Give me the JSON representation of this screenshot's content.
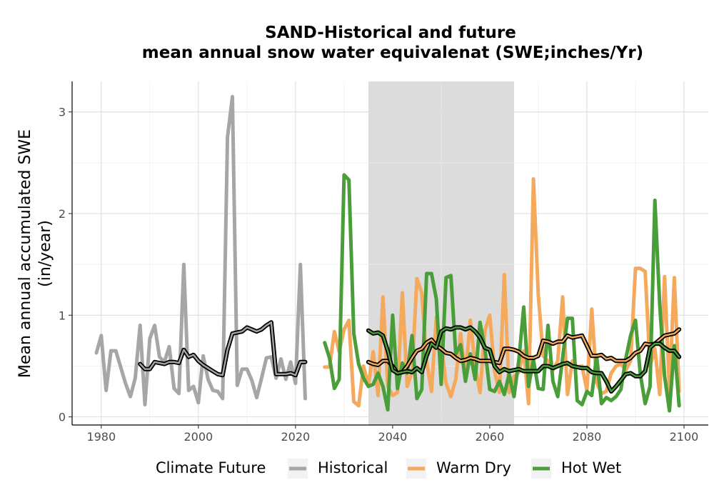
{
  "chart_data": {
    "type": "line",
    "title": "SAND-Historical and future",
    "subtitle": "mean annual snow water equivalenat (SWE;inches/Yr)",
    "xlabel": "",
    "ylabel_line1": "Mean annual accumulated SWE",
    "ylabel_line2": "(in/year)",
    "xlim": [
      1974,
      2105
    ],
    "ylim": [
      -0.08,
      3.3
    ],
    "x_ticks": [
      1980,
      2000,
      2020,
      2040,
      2060,
      2080,
      2100
    ],
    "y_ticks": [
      0,
      1,
      2,
      3
    ],
    "grid": true,
    "shaded_period": [
      2035,
      2065
    ],
    "legend": {
      "title": "Climate Future",
      "position": "bottom"
    },
    "colors": {
      "Historical": "#a6a6a6",
      "Warm Dry": "#f4a95c",
      "Hot Wet": "#4a9e3a",
      "shade": "#dcdcdc",
      "smooth": "#000000"
    },
    "series": [
      {
        "name": "Historical",
        "x": [
          1979,
          1980,
          1981,
          1982,
          1983,
          1984,
          1985,
          1986,
          1987,
          1988,
          1989,
          1990,
          1991,
          1992,
          1993,
          1994,
          1995,
          1996,
          1997,
          1998,
          1999,
          2000,
          2001,
          2002,
          2003,
          2004,
          2005,
          2006,
          2007,
          2008,
          2009,
          2010,
          2011,
          2012,
          2013,
          2014,
          2015,
          2016,
          2017,
          2018,
          2019,
          2020,
          2021,
          2022
        ],
        "y": [
          0.63,
          0.8,
          0.26,
          0.65,
          0.65,
          0.49,
          0.33,
          0.2,
          0.38,
          0.9,
          0.12,
          0.77,
          0.9,
          0.59,
          0.54,
          0.69,
          0.28,
          0.23,
          1.5,
          0.26,
          0.3,
          0.14,
          0.6,
          0.37,
          0.26,
          0.25,
          0.18,
          2.75,
          3.15,
          0.31,
          0.47,
          0.47,
          0.36,
          0.19,
          0.38,
          0.58,
          0.59,
          0.38,
          0.57,
          0.37,
          0.54,
          0.33,
          1.5,
          0.18
        ]
      },
      {
        "name": "Warm Dry",
        "x": [
          2026,
          2027,
          2028,
          2029,
          2030,
          2031,
          2032,
          2033,
          2034,
          2035,
          2036,
          2037,
          2038,
          2039,
          2040,
          2041,
          2042,
          2043,
          2044,
          2045,
          2046,
          2047,
          2048,
          2049,
          2050,
          2051,
          2052,
          2053,
          2054,
          2055,
          2056,
          2057,
          2058,
          2059,
          2060,
          2061,
          2062,
          2063,
          2064,
          2065,
          2066,
          2067,
          2068,
          2069,
          2070,
          2071,
          2072,
          2073,
          2074,
          2075,
          2076,
          2077,
          2078,
          2079,
          2080,
          2081,
          2082,
          2083,
          2084,
          2085,
          2086,
          2087,
          2088,
          2089,
          2090,
          2091,
          2092,
          2093,
          2094,
          2095,
          2096,
          2097,
          2098,
          2099
        ],
        "y": [
          0.49,
          0.49,
          0.84,
          0.64,
          0.86,
          0.95,
          0.15,
          0.11,
          0.5,
          0.31,
          0.64,
          0.21,
          1.18,
          0.3,
          0.21,
          0.24,
          1.22,
          0.3,
          0.44,
          1.36,
          1.22,
          0.55,
          0.25,
          0.98,
          0.72,
          0.33,
          0.2,
          0.37,
          0.82,
          0.4,
          0.95,
          0.5,
          0.24,
          0.85,
          1.0,
          0.45,
          0.24,
          1.4,
          0.24,
          0.4,
          0.44,
          0.65,
          0.13,
          2.34,
          1.2,
          0.6,
          0.55,
          0.46,
          0.55,
          1.18,
          0.22,
          0.55,
          0.49,
          0.5,
          0.26,
          1.06,
          0.34,
          0.23,
          0.25,
          0.43,
          0.5,
          0.52,
          0.46,
          0.55,
          1.46,
          1.46,
          1.43,
          0.5,
          0.67,
          0.22,
          1.38,
          0.25,
          1.37,
          0.25
        ]
      },
      {
        "name": "Hot Wet",
        "x": [
          2026,
          2027,
          2028,
          2029,
          2030,
          2031,
          2032,
          2033,
          2034,
          2035,
          2036,
          2037,
          2038,
          2039,
          2040,
          2041,
          2042,
          2043,
          2044,
          2045,
          2046,
          2047,
          2048,
          2049,
          2050,
          2051,
          2052,
          2053,
          2054,
          2055,
          2056,
          2057,
          2058,
          2059,
          2060,
          2061,
          2062,
          2063,
          2064,
          2065,
          2066,
          2067,
          2068,
          2069,
          2070,
          2071,
          2072,
          2073,
          2074,
          2075,
          2076,
          2077,
          2078,
          2079,
          2080,
          2081,
          2082,
          2083,
          2084,
          2085,
          2086,
          2087,
          2088,
          2089,
          2090,
          2091,
          2092,
          2093,
          2094,
          2095,
          2096,
          2097,
          2098,
          2099
        ],
        "y": [
          0.73,
          0.58,
          0.28,
          0.37,
          2.38,
          2.33,
          0.82,
          0.52,
          0.38,
          0.3,
          0.32,
          0.43,
          0.3,
          0.07,
          1.0,
          0.28,
          0.53,
          0.43,
          0.8,
          0.18,
          0.27,
          1.41,
          1.41,
          1.16,
          0.32,
          1.37,
          1.39,
          0.62,
          0.71,
          0.35,
          0.62,
          0.37,
          0.93,
          0.67,
          0.27,
          0.25,
          0.35,
          0.22,
          0.42,
          0.2,
          0.56,
          1.08,
          0.3,
          0.56,
          0.28,
          0.27,
          0.9,
          0.35,
          0.2,
          0.58,
          0.97,
          0.97,
          0.16,
          0.12,
          0.25,
          0.21,
          0.6,
          0.13,
          0.19,
          0.16,
          0.2,
          0.27,
          0.57,
          0.8,
          0.95,
          0.42,
          0.13,
          0.3,
          2.13,
          1.1,
          0.4,
          0.06,
          0.7,
          0.11
        ]
      }
    ],
    "smoothed": [
      {
        "name": "Historical",
        "x": [
          1988,
          1989,
          1990,
          1991,
          1992,
          1993,
          1994,
          1995,
          1996,
          1997,
          1998,
          1999,
          2000,
          2001,
          2002,
          2003,
          2004,
          2005,
          2006,
          2007,
          2008,
          2009,
          2010,
          2011,
          2012,
          2013,
          2014,
          2015,
          2016,
          2017,
          2018,
          2019,
          2020,
          2021,
          2022
        ],
        "y": [
          0.52,
          0.47,
          0.47,
          0.54,
          0.53,
          0.52,
          0.54,
          0.54,
          0.53,
          0.66,
          0.59,
          0.61,
          0.55,
          0.51,
          0.48,
          0.45,
          0.42,
          0.41,
          0.66,
          0.82,
          0.83,
          0.84,
          0.88,
          0.86,
          0.84,
          0.86,
          0.9,
          0.93,
          0.42,
          0.42,
          0.42,
          0.43,
          0.41,
          0.54,
          0.54
        ]
      },
      {
        "name": "Warm Dry",
        "x": [
          2035,
          2036,
          2037,
          2038,
          2039,
          2040,
          2041,
          2042,
          2043,
          2044,
          2045,
          2046,
          2047,
          2048,
          2049,
          2050,
          2051,
          2052,
          2053,
          2054,
          2055,
          2056,
          2057,
          2058,
          2059,
          2060,
          2061,
          2062,
          2063,
          2064,
          2065,
          2066,
          2067,
          2068,
          2069,
          2070,
          2071,
          2072,
          2073,
          2074,
          2075,
          2076,
          2077,
          2078,
          2079,
          2080,
          2081,
          2082,
          2083,
          2084,
          2085,
          2086,
          2087,
          2088,
          2089,
          2090,
          2091,
          2092,
          2093,
          2094,
          2095,
          2096,
          2097,
          2098,
          2099
        ],
        "y": [
          0.54,
          0.52,
          0.51,
          0.55,
          0.55,
          0.5,
          0.43,
          0.44,
          0.5,
          0.58,
          0.65,
          0.67,
          0.73,
          0.76,
          0.7,
          0.67,
          0.63,
          0.62,
          0.58,
          0.55,
          0.56,
          0.58,
          0.57,
          0.55,
          0.55,
          0.55,
          0.54,
          0.53,
          0.67,
          0.67,
          0.66,
          0.64,
          0.6,
          0.58,
          0.58,
          0.6,
          0.75,
          0.74,
          0.72,
          0.74,
          0.74,
          0.8,
          0.78,
          0.79,
          0.8,
          0.7,
          0.6,
          0.6,
          0.61,
          0.57,
          0.58,
          0.55,
          0.55,
          0.55,
          0.58,
          0.63,
          0.65,
          0.72,
          0.71,
          0.72,
          0.76,
          0.8,
          0.81,
          0.82,
          0.86
        ]
      },
      {
        "name": "Hot Wet",
        "x": [
          2035,
          2036,
          2037,
          2038,
          2039,
          2040,
          2041,
          2042,
          2043,
          2044,
          2045,
          2046,
          2047,
          2048,
          2049,
          2050,
          2051,
          2052,
          2053,
          2054,
          2055,
          2056,
          2057,
          2058,
          2059,
          2060,
          2061,
          2062,
          2063,
          2064,
          2065,
          2066,
          2067,
          2068,
          2069,
          2070,
          2071,
          2072,
          2073,
          2074,
          2075,
          2076,
          2077,
          2078,
          2079,
          2080,
          2081,
          2082,
          2083,
          2084,
          2085,
          2086,
          2087,
          2088,
          2089,
          2090,
          2091,
          2092,
          2093,
          2094,
          2095,
          2096,
          2097,
          2098,
          2099
        ],
        "y": [
          0.85,
          0.82,
          0.83,
          0.8,
          0.65,
          0.46,
          0.43,
          0.44,
          0.45,
          0.44,
          0.48,
          0.44,
          0.6,
          0.72,
          0.68,
          0.84,
          0.87,
          0.86,
          0.88,
          0.88,
          0.86,
          0.88,
          0.84,
          0.78,
          0.68,
          0.66,
          0.5,
          0.44,
          0.47,
          0.45,
          0.46,
          0.47,
          0.45,
          0.45,
          0.45,
          0.45,
          0.5,
          0.5,
          0.48,
          0.5,
          0.52,
          0.53,
          0.5,
          0.49,
          0.48,
          0.48,
          0.44,
          0.43,
          0.43,
          0.35,
          0.25,
          0.3,
          0.36,
          0.42,
          0.43,
          0.4,
          0.4,
          0.45,
          0.68,
          0.72,
          0.72,
          0.68,
          0.65,
          0.65,
          0.59
        ]
      }
    ]
  }
}
